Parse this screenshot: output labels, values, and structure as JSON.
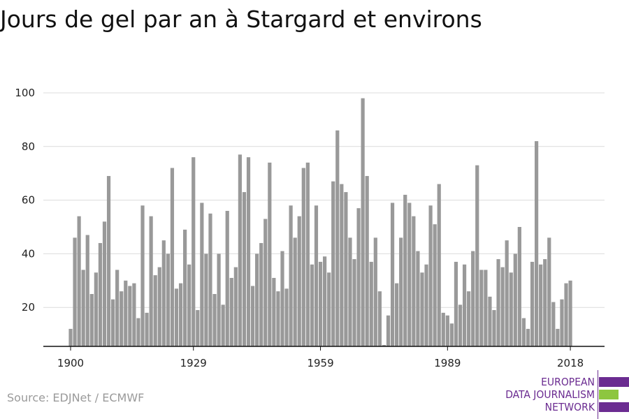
{
  "title": "Jours de gel par an à Stargard et environs",
  "source": "Source: EDJNet / ECMWF",
  "logo": {
    "line1": "EUROPEAN",
    "line2": "DATA JOURNALISM",
    "line3": "NETWORK",
    "colors": {
      "purple": "#6b2c91",
      "green": "#8dc63f"
    }
  },
  "chart_data": {
    "type": "bar",
    "title": "Jours de gel par an à Stargard et environs",
    "xlabel": "",
    "ylabel": "",
    "bar_color": "#999999",
    "grid": true,
    "ylim": [
      5,
      100
    ],
    "yticks": [
      20,
      40,
      60,
      80,
      100
    ],
    "xticks": [
      1900,
      1929,
      1959,
      1989,
      2018
    ],
    "x_start": 1900,
    "values": [
      12,
      46,
      54,
      34,
      47,
      25,
      33,
      44,
      52,
      69,
      23,
      34,
      26,
      30,
      28,
      29,
      16,
      58,
      18,
      54,
      32,
      35,
      45,
      40,
      72,
      27,
      29,
      49,
      36,
      76,
      19,
      59,
      40,
      55,
      25,
      40,
      21,
      56,
      31,
      35,
      77,
      63,
      76,
      28,
      40,
      44,
      53,
      74,
      31,
      26,
      41,
      27,
      58,
      46,
      54,
      72,
      74,
      36,
      58,
      37,
      39,
      33,
      67,
      86,
      66,
      63,
      46,
      38,
      57,
      98,
      69,
      37,
      46,
      26,
      6,
      17,
      59,
      29,
      46,
      62,
      59,
      54,
      41,
      33,
      36,
      58,
      51,
      66,
      18,
      17,
      14,
      37,
      21,
      36,
      26,
      41,
      73,
      34,
      34,
      24,
      19,
      38,
      35,
      45,
      33,
      40,
      50,
      16,
      12,
      37,
      82,
      36,
      38,
      46,
      22,
      12,
      23,
      29,
      30
    ]
  }
}
